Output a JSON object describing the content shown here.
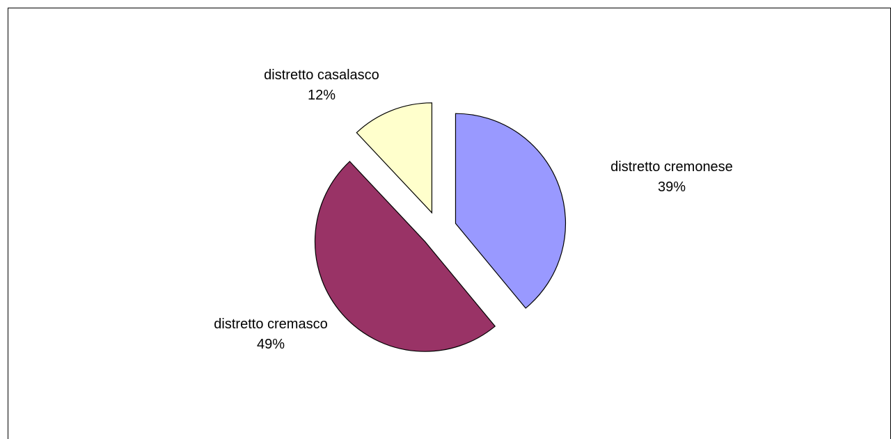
{
  "chart_data": {
    "type": "pie",
    "title": "",
    "slices": [
      {
        "label": "distretto cremonese",
        "value": 39,
        "value_label": "39%",
        "color": "#9999ff",
        "exploded": true
      },
      {
        "label": "distretto cremasco",
        "value": 49,
        "value_label": "49%",
        "color": "#993366",
        "exploded": true
      },
      {
        "label": "distretto casalasco",
        "value": 12,
        "value_label": "12%",
        "color": "#ffffcc",
        "exploded": true
      }
    ],
    "start_angle_deg": 0,
    "direction": "clockwise",
    "legend": "none",
    "data_labels": "category and percent outside slices"
  }
}
